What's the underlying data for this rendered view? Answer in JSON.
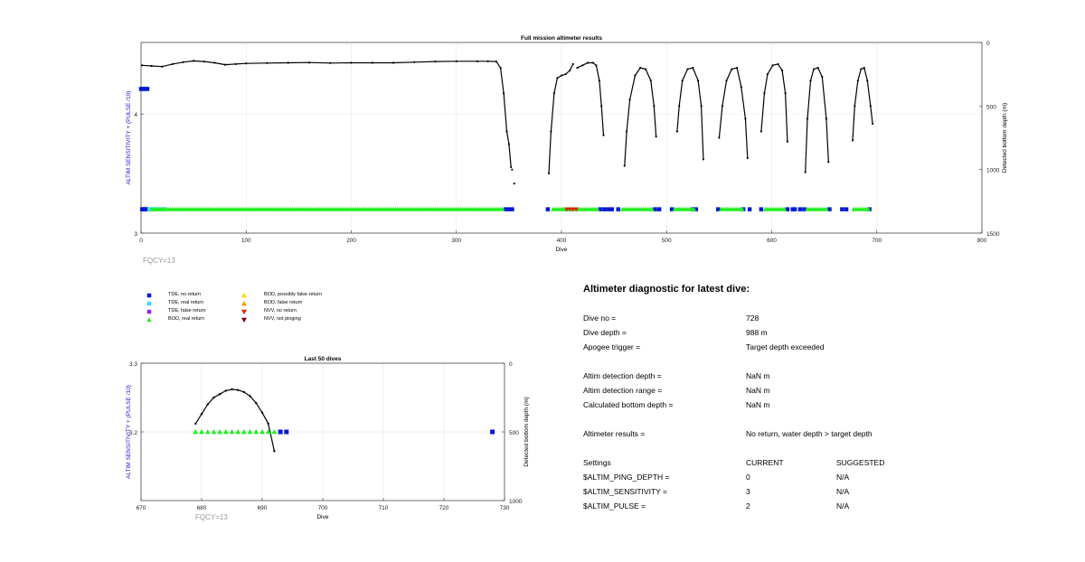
{
  "chart_data": [
    {
      "type": "scatter",
      "title": "Full mission altimeter results",
      "xlabel": "Dive",
      "ylabel": "ALTIM SENSITIVITY + (PULSE /10)",
      "ylabel_right": "Detected bottom depth (m)",
      "xlim": [
        0,
        800
      ],
      "ylim": [
        3,
        4.6
      ],
      "ylim_right": [
        1500,
        0
      ],
      "xticks": [
        "0",
        "100",
        "200",
        "300",
        "400",
        "500",
        "600",
        "700",
        "800"
      ],
      "yticks": [
        "3",
        "4"
      ],
      "yticks_right": [
        "0",
        "500",
        "1000",
        "1500"
      ],
      "annotation": "FQCY=13",
      "grid": true,
      "depth_series": {
        "name": "Detected bottom depth",
        "color": "#000000",
        "segments": [
          [
            [
              1,
              180
            ],
            [
              10,
              185
            ],
            [
              20,
              190
            ],
            [
              30,
              170
            ],
            [
              40,
              155
            ],
            [
              50,
              145
            ],
            [
              60,
              150
            ],
            [
              70,
              160
            ],
            [
              80,
              175
            ],
            [
              90,
              170
            ],
            [
              100,
              165
            ],
            [
              120,
              162
            ],
            [
              140,
              160
            ],
            [
              160,
              158
            ],
            [
              180,
              162
            ],
            [
              200,
              160
            ],
            [
              220,
              160
            ],
            [
              240,
              160
            ],
            [
              260,
              155
            ],
            [
              280,
              150
            ],
            [
              300,
              148
            ],
            [
              320,
              148
            ],
            [
              330,
              148
            ],
            [
              338,
              150
            ],
            [
              342,
              200
            ],
            [
              345,
              400
            ],
            [
              348,
              700
            ],
            [
              350,
              800
            ],
            [
              352,
              980
            ]
          ],
          [
            [
              388,
              1030
            ],
            [
              390,
              700
            ],
            [
              393,
              400
            ],
            [
              396,
              280
            ],
            [
              400,
              260
            ],
            [
              404,
              250
            ],
            [
              408,
              220
            ],
            [
              411,
              170
            ]
          ],
          [
            [
              415,
              200
            ],
            [
              420,
              180
            ],
            [
              425,
              160
            ],
            [
              430,
              160
            ],
            [
              433,
              180
            ],
            [
              436,
              300
            ],
            [
              438,
              500
            ],
            [
              440,
              730
            ]
          ],
          [
            [
              460,
              970
            ],
            [
              462,
              700
            ],
            [
              465,
              450
            ],
            [
              470,
              260
            ],
            [
              475,
              200
            ],
            [
              480,
              210
            ],
            [
              485,
              300
            ],
            [
              488,
              500
            ],
            [
              490,
              740
            ]
          ],
          [
            [
              510,
              700
            ],
            [
              512,
              500
            ],
            [
              515,
              300
            ],
            [
              520,
              210
            ],
            [
              525,
              200
            ],
            [
              530,
              300
            ],
            [
              533,
              500
            ],
            [
              535,
              920
            ]
          ],
          [
            [
              550,
              750
            ],
            [
              553,
              500
            ],
            [
              557,
              300
            ],
            [
              562,
              210
            ],
            [
              567,
              200
            ],
            [
              571,
              350
            ],
            [
              575,
              600
            ],
            [
              577,
              910
            ]
          ],
          [
            [
              590,
              700
            ],
            [
              593,
              400
            ],
            [
              596,
              250
            ],
            [
              601,
              180
            ],
            [
              606,
              170
            ],
            [
              610,
              220
            ],
            [
              613,
              400
            ],
            [
              615,
              780
            ]
          ],
          [
            [
              632,
              1020
            ],
            [
              634,
              600
            ],
            [
              637,
              300
            ],
            [
              640,
              210
            ],
            [
              644,
              200
            ],
            [
              648,
              270
            ],
            [
              652,
              600
            ],
            [
              654,
              940
            ]
          ],
          [
            [
              677,
              770
            ],
            [
              679,
              500
            ],
            [
              682,
              300
            ],
            [
              685,
              210
            ],
            [
              688,
              200
            ],
            [
              691,
              300
            ],
            [
              694,
              500
            ],
            [
              696,
              640
            ]
          ]
        ],
        "stray_points": [
          [
            353,
            1000
          ],
          [
            355,
            1110
          ]
        ]
      },
      "code_series": [
        {
          "name": "TDE, no return",
          "color": "#0018d6",
          "marker": "square",
          "y": 3.2,
          "x": [
            1,
            2,
            3,
            4,
            5,
            6,
            347,
            350,
            353,
            387,
            437,
            441,
            445,
            448,
            454,
            489,
            493,
            505,
            525,
            528,
            549,
            573,
            579,
            590,
            615,
            620,
            622,
            627,
            631,
            655,
            667,
            671,
            693
          ]
        },
        {
          "name": "TDE, real return",
          "color": "#33e0ff",
          "marker": "square",
          "y": 3.2,
          "x": [
            8,
            10,
            12,
            15,
            18,
            22
          ]
        },
        {
          "name": "BOD, real return",
          "color": "#22ee22",
          "marker": "triangle",
          "y": 3.2,
          "x_range": [
            [
              10,
              345
            ],
            [
              392,
              435
            ],
            [
              458,
              487
            ],
            [
              508,
              526
            ],
            [
              552,
              572
            ],
            [
              594,
              613
            ],
            [
              634,
              652
            ],
            [
              678,
              692
            ]
          ]
        },
        {
          "name": "NVV, no return",
          "color": "#dd2200",
          "marker": "triangle-down",
          "y": 3.2,
          "x": [
            405,
            408,
            411,
            414
          ]
        },
        {
          "name": "dive-start marker",
          "color": "#0018d6",
          "marker": "square",
          "y": 4.21,
          "x": [
            0,
            2,
            4,
            6
          ]
        }
      ]
    },
    {
      "type": "scatter",
      "title": "Last 50 dives",
      "xlabel": "Dive",
      "ylabel": "ALTIM SENSITIVITY + (PULSE /10)",
      "ylabel_right": "Detected bottom depth (m)",
      "xlim": [
        670,
        730
      ],
      "ylim": [
        3.1,
        3.3
      ],
      "ylim_right": [
        1000,
        0
      ],
      "xticks": [
        "670",
        "680",
        "690",
        "700",
        "710",
        "720",
        "730"
      ],
      "yticks": [
        "3.2",
        "3.3"
      ],
      "yticks_right": [
        "0",
        "500",
        "1000"
      ],
      "annotation": "FQCY=13",
      "grid": true,
      "depth_series": {
        "name": "Detected bottom depth",
        "color": "#000000",
        "points": [
          [
            679,
            440
          ],
          [
            680,
            370
          ],
          [
            681,
            300
          ],
          [
            682,
            250
          ],
          [
            683,
            225
          ],
          [
            684,
            200
          ],
          [
            685,
            190
          ],
          [
            686,
            195
          ],
          [
            687,
            210
          ],
          [
            688,
            240
          ],
          [
            689,
            290
          ],
          [
            690,
            360
          ],
          [
            691,
            440
          ],
          [
            692,
            640
          ]
        ]
      },
      "code_series": [
        {
          "name": "BOD, real return",
          "color": "#22ee22",
          "marker": "triangle",
          "y": 3.2,
          "x": [
            679,
            680,
            681,
            682,
            683,
            684,
            685,
            686,
            687,
            688,
            689,
            690,
            691,
            692
          ]
        },
        {
          "name": "TDE, no return",
          "color": "#0018d6",
          "marker": "square",
          "y": 3.2,
          "x": [
            693,
            694,
            728
          ]
        }
      ]
    }
  ],
  "legend": {
    "left": [
      {
        "label": "TDE, no return",
        "color": "#0018d6",
        "marker": "square"
      },
      {
        "label": "TDE, real return",
        "color": "#33e0ff",
        "marker": "square"
      },
      {
        "label": "TDE, false return",
        "color": "#8a2be2",
        "marker": "square"
      },
      {
        "label": "BOD, real return",
        "color": "#22ee22",
        "marker": "triangle"
      }
    ],
    "right": [
      {
        "label": "BOD, possibly false return",
        "color": "#ffd700",
        "marker": "triangle"
      },
      {
        "label": "BOD, false return",
        "color": "#ff9900",
        "marker": "triangle"
      },
      {
        "label": "NVV, no return",
        "color": "#dd2200",
        "marker": "triangle-down"
      },
      {
        "label": "NVV, not pinging",
        "color": "#7a0000",
        "marker": "triangle-down"
      }
    ]
  },
  "diagnostic": {
    "title": "Altimeter diagnostic for latest dive:",
    "dive_no_label": "Dive no =",
    "dive_no_value": "728",
    "dive_depth_label": "Dive depth =",
    "dive_depth_value": "988 m",
    "apogee_label": "Apogee trigger =",
    "apogee_value": "Target depth exceeded",
    "detect_depth_label": "Altim detection depth =",
    "detect_depth_value": "NaN m",
    "detect_range_label": "Altim detection range =",
    "detect_range_value": "NaN m",
    "calc_bottom_label": "Calculated bottom depth =",
    "calc_bottom_value": "NaN m",
    "results_label": "Altimeter results =",
    "results_value": "No return, water depth > target depth",
    "settings_label": "Settings",
    "current_header": "CURRENT",
    "suggested_header": "SUGGESTED",
    "ping_depth_label": "$ALTIM_PING_DEPTH =",
    "ping_depth_current": "0",
    "ping_depth_suggested": "N/A",
    "sensitivity_label": "$ALTIM_SENSITIVITY =",
    "sensitivity_current": "3",
    "sensitivity_suggested": "N/A",
    "pulse_label": "$ALTIM_PULSE =",
    "pulse_current": "2",
    "pulse_suggested": "N/A"
  }
}
